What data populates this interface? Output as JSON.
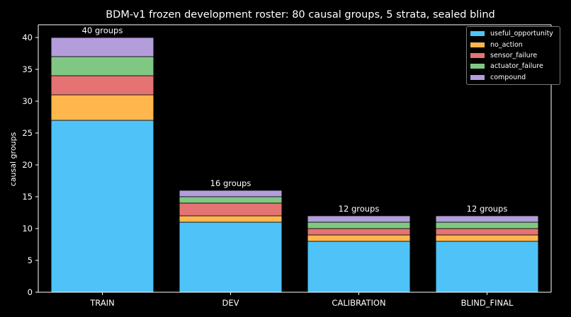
{
  "chart_data": {
    "type": "bar",
    "stacked": true,
    "title": "BDM-v1 frozen development roster: 80 causal groups, 5 strata, sealed blind",
    "xlabel": "",
    "ylabel": "causal groups",
    "ylim": [
      0,
      42
    ],
    "yticks": [
      0,
      5,
      10,
      15,
      20,
      25,
      30,
      35,
      40
    ],
    "grid": false,
    "legend_position": "top-right",
    "categories": [
      "TRAIN",
      "DEV",
      "CALIBRATION",
      "BLIND_FINAL"
    ],
    "series": [
      {
        "name": "useful_opportunity",
        "color": "#4fc3f7",
        "values": [
          27,
          11,
          8,
          8
        ]
      },
      {
        "name": "no_action",
        "color": "#ffb74d",
        "values": [
          4,
          1,
          1,
          1
        ]
      },
      {
        "name": "sensor_failure",
        "color": "#e57373",
        "values": [
          3,
          2,
          1,
          1
        ]
      },
      {
        "name": "actuator_failure",
        "color": "#81c784",
        "values": [
          3,
          1,
          1,
          1
        ]
      },
      {
        "name": "compound",
        "color": "#b39ddb",
        "values": [
          3,
          1,
          1,
          1
        ]
      }
    ],
    "bar_labels": [
      "40 groups",
      "16 groups",
      "12 groups",
      "12 groups"
    ]
  }
}
